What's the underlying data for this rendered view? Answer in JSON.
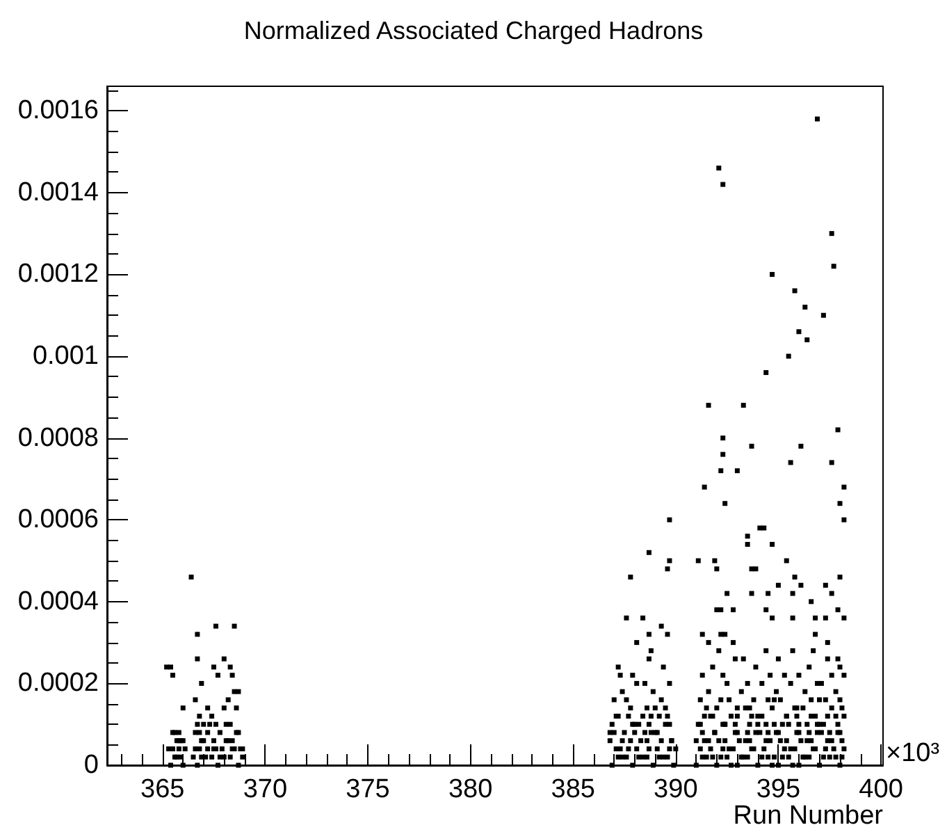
{
  "chart_data": {
    "type": "scatter",
    "title": "Normalized Associated Charged Hadrons",
    "xlabel": "Run Number",
    "annotations": [
      "×10³"
    ],
    "color": "#000000",
    "marker": "square",
    "xlim": [
      362.3,
      400.1
    ],
    "ylim": [
      0,
      0.00166
    ],
    "xticks": [
      {
        "value": 363,
        "label": null
      },
      {
        "value": 364,
        "label": null
      },
      365,
      {
        "value": 366,
        "label": null
      },
      {
        "value": 367,
        "label": null
      },
      {
        "value": 368,
        "label": null
      },
      {
        "value": 369,
        "label": null
      },
      370,
      {
        "value": 371,
        "label": null
      },
      {
        "value": 372,
        "label": null
      },
      {
        "value": 373,
        "label": null
      },
      {
        "value": 374,
        "label": null
      },
      375,
      {
        "value": 376,
        "label": null
      },
      {
        "value": 377,
        "label": null
      },
      {
        "value": 378,
        "label": null
      },
      {
        "value": 379,
        "label": null
      },
      380,
      {
        "value": 381,
        "label": null
      },
      {
        "value": 382,
        "label": null
      },
      {
        "value": 383,
        "label": null
      },
      {
        "value": 384,
        "label": null
      },
      385,
      {
        "value": 386,
        "label": null
      },
      {
        "value": 387,
        "label": null
      },
      {
        "value": 388,
        "label": null
      },
      {
        "value": 389,
        "label": null
      },
      390,
      {
        "value": 391,
        "label": null
      },
      {
        "value": 392,
        "label": null
      },
      {
        "value": 393,
        "label": null
      },
      {
        "value": 394,
        "label": null
      },
      395,
      {
        "value": 396,
        "label": null
      },
      {
        "value": 397,
        "label": null
      },
      {
        "value": 398,
        "label": null
      },
      {
        "value": 399,
        "label": null
      },
      400
    ],
    "yticks": [
      0,
      {
        "value": 5e-05,
        "label": null
      },
      {
        "value": 0.0001,
        "label": null
      },
      {
        "value": 0.00015,
        "label": null
      },
      0.0002,
      {
        "value": 0.00025,
        "label": null
      },
      {
        "value": 0.0003,
        "label": null
      },
      {
        "value": 0.00035,
        "label": null
      },
      0.0004,
      {
        "value": 0.00045,
        "label": null
      },
      {
        "value": 0.0005,
        "label": null
      },
      {
        "value": 0.00055,
        "label": null
      },
      0.0006,
      {
        "value": 0.00065,
        "label": null
      },
      {
        "value": 0.0007,
        "label": null
      },
      {
        "value": 0.00075,
        "label": null
      },
      0.0008,
      {
        "value": 0.00085,
        "label": null
      },
      {
        "value": 0.0009,
        "label": null
      },
      {
        "value": 0.00095,
        "label": null
      },
      0.001,
      {
        "value": 0.00105,
        "label": null
      },
      {
        "value": 0.0011,
        "label": null
      },
      {
        "value": 0.00115,
        "label": null
      },
      0.0012,
      {
        "value": 0.00125,
        "label": null
      },
      {
        "value": 0.0013,
        "label": null
      },
      {
        "value": 0.00135,
        "label": null
      },
      0.0014,
      {
        "value": 0.00145,
        "label": null
      },
      {
        "value": 0.0015,
        "label": null
      },
      {
        "value": 0.00155,
        "label": null
      },
      0.0016,
      {
        "value": 0.00165,
        "label": null
      }
    ],
    "x": [
      366.4,
      366.7,
      367.6,
      368.5,
      366.7,
      368.0,
      365.2,
      365.4,
      365.5,
      367.5,
      367.7,
      368.3,
      368.4,
      366.9,
      368.7,
      368.5,
      368.2,
      368.6,
      366.6,
      366.0,
      367.2,
      366.8,
      365.4,
      365.5,
      365.6,
      365.7,
      365.8,
      365.9,
      366.0,
      365.5,
      365.7,
      366.0,
      365.9,
      365.8,
      366.5,
      366.6,
      366.7,
      366.8,
      366.9,
      367.0,
      367.1,
      367.2,
      367.3,
      367.4,
      367.5,
      367.6,
      367.7,
      367.8,
      367.9,
      368.0,
      368.1,
      368.2,
      368.3,
      368.4,
      368.5,
      368.6,
      368.7,
      368.8,
      368.9,
      366.7,
      367.4,
      368.0,
      367.0,
      386.9,
      387.4,
      387.9,
      388.4,
      388.9,
      389.4,
      389.9,
      387.1,
      387.6,
      388.1,
      388.6,
      389.1,
      389.6,
      390.0,
      386.8,
      387.3,
      387.8,
      388.3,
      388.8,
      389.3,
      389.8,
      387.0,
      387.5,
      388.0,
      388.5,
      389.0,
      389.5,
      386.9,
      387.7,
      388.2,
      388.7,
      389.2,
      389.7,
      387.2,
      387.8,
      388.4,
      389.0,
      389.6,
      387.0,
      387.6,
      388.6,
      389.3,
      387.4,
      388.1,
      388.9,
      389.7,
      387.3,
      387.9,
      388.5,
      387.2,
      388.7,
      389.4,
      389.7,
      388.7,
      389.7,
      389.6,
      387.8,
      387.6,
      388.4,
      389.3,
      388.7,
      389.6,
      388.1,
      388.8,
      391.0,
      391.5,
      392.0,
      392.5,
      393.0,
      393.5,
      394.0,
      394.5,
      395.0,
      395.5,
      396.0,
      396.5,
      397.0,
      397.5,
      398.0,
      391.2,
      391.8,
      392.3,
      392.8,
      393.3,
      393.8,
      394.3,
      394.8,
      395.3,
      395.8,
      396.3,
      396.8,
      397.3,
      397.8,
      398.2,
      391.0,
      391.6,
      392.1,
      392.6,
      393.1,
      393.6,
      394.1,
      394.6,
      395.1,
      395.6,
      396.1,
      396.6,
      397.1,
      397.6,
      398.1,
      391.3,
      391.9,
      392.4,
      393.0,
      393.5,
      394.0,
      394.5,
      395.0,
      395.5,
      396.0,
      396.5,
      397.0,
      397.5,
      398.0,
      391.1,
      391.7,
      392.3,
      392.9,
      393.7,
      394.4,
      395.2,
      395.9,
      396.4,
      396.9,
      397.4,
      397.9,
      391.4,
      392.0,
      392.7,
      393.4,
      394.0,
      394.7,
      395.4,
      396.2,
      396.8,
      397.6,
      398.2,
      391.2,
      392.2,
      393.0,
      393.8,
      394.5,
      395.1,
      395.8,
      396.6,
      397.3,
      398.0,
      391.6,
      392.5,
      393.2,
      394.2,
      394.9,
      395.6,
      396.3,
      397.1,
      397.8,
      391.3,
      392.3,
      393.5,
      394.6,
      395.3,
      396.0,
      396.9,
      397.6,
      398.2,
      391.8,
      392.9,
      393.9,
      395.0,
      396.5,
      397.4,
      398.0,
      392.1,
      393.3,
      394.4,
      395.7,
      396.7,
      397.9,
      396.9,
      392.1,
      392.3,
      397.6,
      397.7,
      394.7,
      395.8,
      396.3,
      397.2,
      396.0,
      396.4,
      395.5,
      394.4,
      391.6,
      393.3,
      397.9,
      392.3,
      393.7,
      396.1,
      395.6,
      392.3,
      392.2,
      393.0,
      397.6,
      398.2,
      391.4,
      392.4,
      398.0,
      398.2,
      394.1,
      394.3,
      393.5,
      393.5,
      394.7,
      391.1,
      391.9,
      392.0,
      393.7,
      393.9,
      395.4,
      395.8,
      396.1,
      397.3,
      398.0,
      392.5,
      393.7,
      394.5,
      395.0,
      395.7,
      397.6,
      396.6,
      397.9,
      398.2,
      392.0,
      392.2,
      392.8,
      394.4,
      394.7,
      395.7,
      396.8,
      397.3,
      391.3,
      391.6,
      392.2,
      392.4,
      392.8,
      396.8,
      397.4,
      391.3,
      391.7,
      392.2,
      392.7,
      393.2,
      393.7,
      394.2,
      394.7,
      395.2,
      395.7,
      396.2,
      396.7,
      397.2,
      397.7,
      398.1,
      391.4,
      391.9,
      392.4,
      392.9,
      393.4,
      393.9,
      394.4,
      394.9,
      395.4,
      395.9,
      396.4,
      396.9,
      397.4,
      397.9,
      391.2,
      391.8,
      392.4,
      393.0,
      393.6,
      394.2,
      394.8,
      395.4,
      396.0,
      396.6,
      397.2,
      397.8,
      391.5,
      392.6,
      393.6,
      394.8,
      395.9,
      397.0,
      398.1,
      387.2,
      387.7,
      388.2,
      388.7,
      389.2,
      389.7,
      386.8,
      387.4,
      388.0,
      388.6,
      389.1,
      389.8,
      387.1,
      387.9,
      388.8,
      389.5,
      365.3,
      365.6,
      366.1,
      365.8,
      366.6,
      366.9,
      367.2,
      367.5,
      367.8,
      368.1,
      368.4,
      368.7,
      368.9,
      367.6,
      368.3,
      366.8
    ],
    "values": [
      0.00046,
      0.00032,
      0.00034,
      0.00034,
      0.00026,
      0.00026,
      0.00024,
      0.00024,
      0.00022,
      0.00024,
      0.00022,
      0.00024,
      0.00022,
      0.0002,
      0.00018,
      0.00018,
      0.00016,
      0.00014,
      0.00016,
      0.00014,
      0.00014,
      0.00012,
      0,
      4e-05,
      2e-05,
      6e-05,
      8e-05,
      2e-05,
      6e-05,
      8e-05,
      2e-05,
      0,
      6e-05,
      4e-05,
      2e-05,
      4e-05,
      0,
      8e-05,
      2e-05,
      6e-05,
      2e-05,
      4e-05,
      0.0001,
      2e-05,
      6e-05,
      4e-05,
      0,
      8e-05,
      4e-05,
      2e-05,
      0.0001,
      6e-05,
      2e-05,
      6e-05,
      4e-05,
      8e-05,
      0,
      4e-05,
      2e-05,
      0.0001,
      0.00012,
      0.00014,
      0.0001,
      0,
      2e-05,
      0,
      2e-05,
      0,
      2e-05,
      0,
      4e-05,
      2e-05,
      4e-05,
      2e-05,
      4e-05,
      2e-05,
      4e-05,
      6e-05,
      4e-05,
      6e-05,
      6e-05,
      8e-05,
      6e-05,
      6e-05,
      8e-05,
      8e-05,
      0.0001,
      8e-05,
      8e-05,
      0.0001,
      0.0001,
      0.00012,
      0.0001,
      0.0001,
      0.00012,
      0.0001,
      0.00012,
      0.00014,
      0.00012,
      0.00014,
      0.00012,
      0.00016,
      0.00016,
      0.00014,
      0.00016,
      0.00018,
      0.0002,
      0.00018,
      0.0002,
      0.00022,
      0.00022,
      0.0002,
      0.00024,
      0.00026,
      0.00024,
      0.0006,
      0.00052,
      0.0005,
      0.00048,
      0.00046,
      0.00036,
      0.00036,
      0.00034,
      0.00032,
      0.00032,
      0.0003,
      0.00028,
      0,
      2e-05,
      0,
      2e-05,
      0,
      2e-05,
      0,
      2e-05,
      0,
      2e-05,
      0,
      2e-05,
      0,
      2e-05,
      0,
      4e-05,
      2e-05,
      4e-05,
      4e-05,
      2e-05,
      4e-05,
      4e-05,
      2e-05,
      4e-05,
      4e-05,
      2e-05,
      4e-05,
      4e-05,
      2e-05,
      4e-05,
      6e-05,
      6e-05,
      6e-05,
      4e-05,
      6e-05,
      6e-05,
      8e-05,
      6e-05,
      6e-05,
      4e-05,
      6e-05,
      6e-05,
      8e-05,
      6e-05,
      6e-05,
      8e-05,
      8e-05,
      0.0001,
      8e-05,
      8e-05,
      0.0001,
      8e-05,
      8e-05,
      0.0001,
      8e-05,
      8e-05,
      0.0001,
      8e-05,
      8e-05,
      0.0001,
      0.00012,
      0.0001,
      0.0001,
      0.00012,
      0.0001,
      0.0001,
      0.00012,
      0.0001,
      0.0001,
      0.00012,
      0.0001,
      0.00012,
      0.00014,
      0.00012,
      0.00014,
      0.00012,
      0.00014,
      0.00012,
      0.00014,
      0.00012,
      0.00014,
      0.00012,
      0.00016,
      0.00016,
      0.00014,
      0.00016,
      0.00016,
      0.00016,
      0.00014,
      0.00016,
      0.00016,
      0.00016,
      0.00018,
      0.0002,
      0.00018,
      0.0002,
      0.00018,
      0.0002,
      0.00018,
      0.0002,
      0.00018,
      0.00022,
      0.00022,
      0.0002,
      0.00022,
      0.00022,
      0.00022,
      0.0002,
      0.00022,
      0.00022,
      0.00024,
      0.00026,
      0.00024,
      0.00026,
      0.00024,
      0.00026,
      0.00024,
      0.00028,
      0.00026,
      0.00028,
      0.00028,
      0.00028,
      0.00026,
      0.00158,
      0.00146,
      0.00142,
      0.0013,
      0.00122,
      0.0012,
      0.00116,
      0.00112,
      0.0011,
      0.00106,
      0.00104,
      0.001,
      0.00096,
      0.00088,
      0.00088,
      0.00082,
      0.0008,
      0.00078,
      0.00078,
      0.00074,
      0.00076,
      0.00072,
      0.00072,
      0.00074,
      0.00068,
      0.00068,
      0.00064,
      0.00064,
      0.0006,
      0.00058,
      0.00058,
      0.00056,
      0.00054,
      0.00054,
      0.0005,
      0.0005,
      0.00048,
      0.00048,
      0.00048,
      0.0005,
      0.00046,
      0.00044,
      0.00044,
      0.00046,
      0.00042,
      0.00042,
      0.00042,
      0.00044,
      0.00042,
      0.00042,
      0.0004,
      0.00038,
      0.00036,
      0.00038,
      0.00038,
      0.00038,
      0.00038,
      0.00036,
      0.00036,
      0.00036,
      0.00036,
      0.00032,
      0.0003,
      0.00032,
      0.00032,
      0.0003,
      0.00032,
      0.0003,
      2e-05,
      4e-05,
      2e-05,
      0,
      2e-05,
      4e-05,
      2e-05,
      0,
      2e-05,
      0,
      2e-05,
      4e-05,
      2e-05,
      4e-05,
      2e-05,
      6e-05,
      8e-05,
      6e-05,
      8e-05,
      6e-05,
      8e-05,
      6e-05,
      8e-05,
      6e-05,
      8e-05,
      6e-05,
      8e-05,
      6e-05,
      8e-05,
      0.0001,
      0.00012,
      0.0001,
      0.00012,
      0.0001,
      0.00012,
      0.0001,
      0.00012,
      0.0001,
      0.00012,
      0.0001,
      0.00012,
      0.00014,
      0.00016,
      0.00014,
      0.00016,
      0.00014,
      0.00016,
      0.00014,
      2e-05,
      4e-05,
      2e-05,
      4e-05,
      2e-05,
      4e-05,
      8e-05,
      6e-05,
      8e-05,
      6e-05,
      8e-05,
      6e-05,
      0.00012,
      0.0001,
      0.00012,
      0.00014,
      4e-05,
      8e-05,
      4e-05,
      6e-05,
      8e-05,
      6e-05,
      8e-05,
      4e-05,
      2e-05,
      6e-05,
      4e-05,
      8e-05,
      4e-05,
      0.0001,
      0.0001,
      4e-05
    ]
  }
}
